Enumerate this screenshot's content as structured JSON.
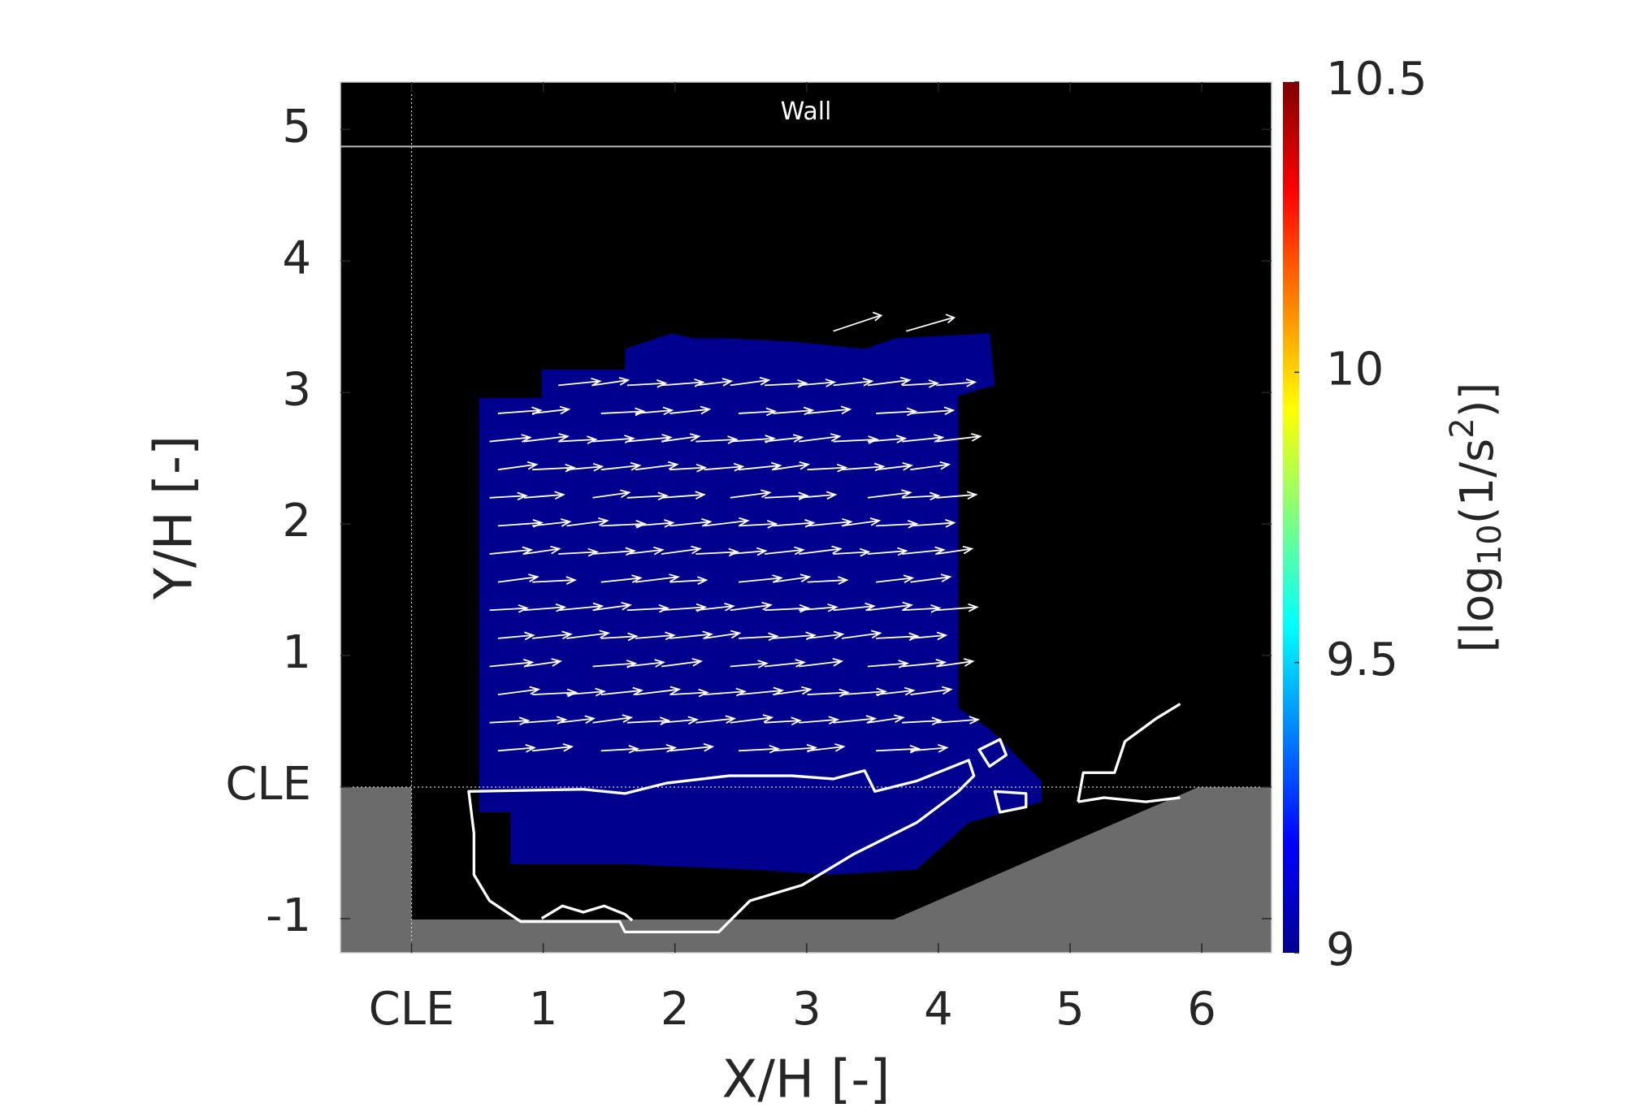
{
  "chart_data": {
    "type": "heatmap",
    "xlabel": "X/H [-]",
    "ylabel": "Y/H [-]",
    "xlim": [
      -0.54,
      6.53
    ],
    "ylim": [
      -1.26,
      5.36
    ],
    "xticks": [
      {
        "value": 0,
        "label": "CLE"
      },
      1,
      2,
      3,
      4,
      5,
      6
    ],
    "yticks": [
      -1,
      {
        "value": 0,
        "label": "CLE"
      },
      1,
      2,
      3,
      4,
      5
    ],
    "wall": {
      "label": "Wall",
      "y": 4.87
    },
    "colorbar": {
      "label": [
        "[log",
        "10",
        "(1/s",
        "2",
        ")]"
      ],
      "clim": [
        9,
        10.5
      ],
      "ticks": [
        9,
        9.5,
        10,
        10.5
      ],
      "colormap": "jet"
    }
  }
}
